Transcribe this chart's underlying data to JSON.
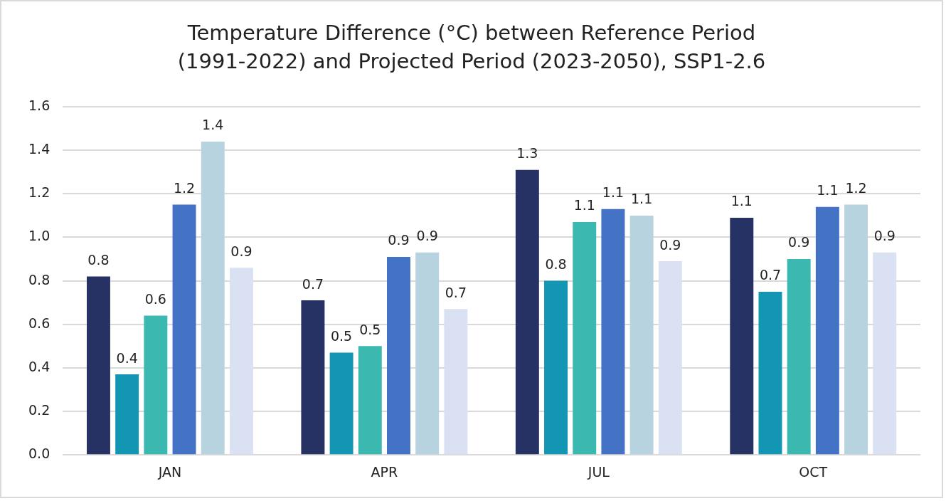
{
  "chart_data": {
    "type": "bar",
    "title": "Temperature Difference (°C) between Reference Period (1991-2022) and Projected Period (2023-2050), SSP1-2.6",
    "categories": [
      "JAN",
      "APR",
      "JUL",
      "OCT"
    ],
    "series": [
      {
        "color": "#263264",
        "values": [
          0.82,
          0.71,
          1.31,
          1.09
        ],
        "value_labels": [
          "0.8",
          "0.7",
          "1.3",
          "1.1"
        ]
      },
      {
        "color": "#1396b4",
        "values": [
          0.37,
          0.47,
          0.8,
          0.75
        ],
        "value_labels": [
          "0.4",
          "0.5",
          "0.8",
          "0.7"
        ]
      },
      {
        "color": "#3bb8b0",
        "values": [
          0.64,
          0.5,
          1.07,
          0.9
        ],
        "value_labels": [
          "0.6",
          "0.5",
          "1.1",
          "0.9"
        ]
      },
      {
        "color": "#4472c4",
        "values": [
          1.15,
          0.91,
          1.13,
          1.14
        ],
        "value_labels": [
          "1.2",
          "0.9",
          "1.1",
          "1.1"
        ]
      },
      {
        "color": "#b7d3e0",
        "values": [
          1.44,
          0.93,
          1.1,
          1.15
        ],
        "value_labels": [
          "1.4",
          "0.9",
          "1.1",
          "1.2"
        ]
      },
      {
        "color": "#d9e1f2",
        "values": [
          0.86,
          0.67,
          0.89,
          0.93
        ],
        "value_labels": [
          "0.9",
          "0.7",
          "0.9",
          "0.9"
        ]
      }
    ],
    "ylim": [
      0,
      1.6
    ],
    "yticks": [
      {
        "value": 0,
        "label": "0.0"
      },
      {
        "value": 0.2,
        "label": "0.2"
      },
      {
        "value": 0.4,
        "label": "0.4"
      },
      {
        "value": 0.6,
        "label": "0.6"
      },
      {
        "value": 0.8,
        "label": "0.8"
      },
      {
        "value": 1.0,
        "label": "1.0"
      },
      {
        "value": 1.2,
        "label": "1.2"
      },
      {
        "value": 1.4,
        "label": "1.4"
      },
      {
        "value": 1.6,
        "label": "1.6"
      }
    ],
    "grid": "y",
    "legend": false
  }
}
